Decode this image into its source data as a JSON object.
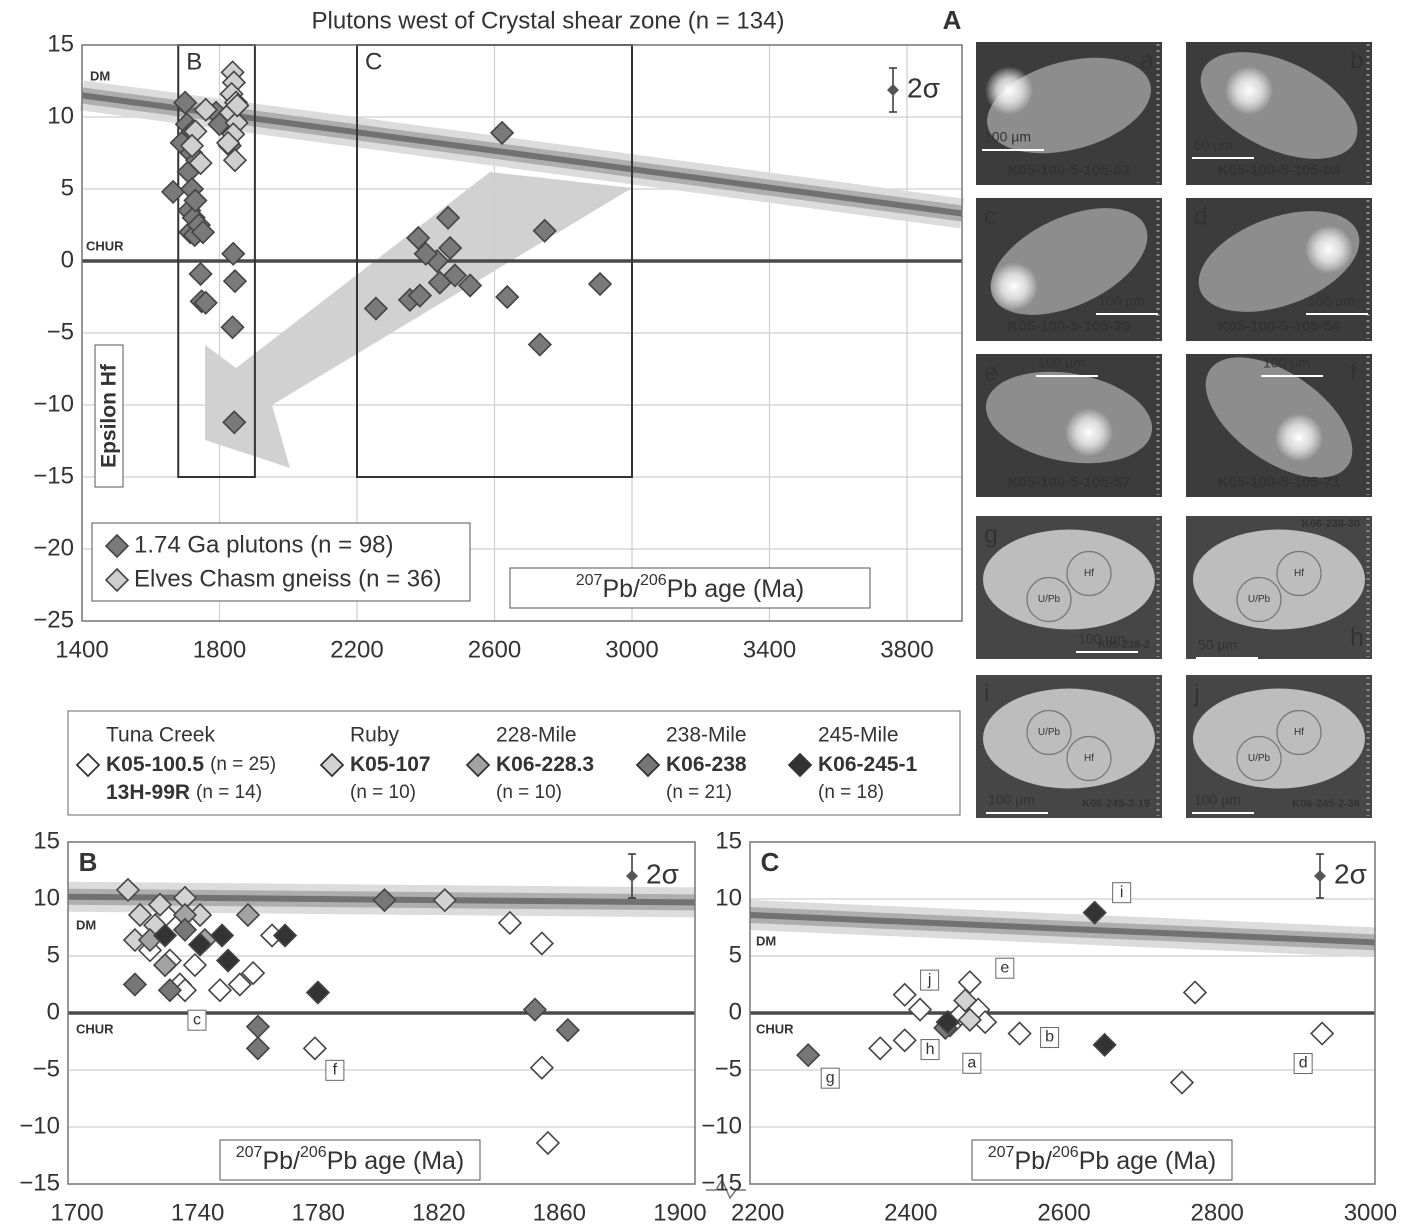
{
  "chart_data": [
    {
      "type": "scatter",
      "title": "Plutons west of Crystal shear zone (n = 134)",
      "panel_label": "A",
      "y_label": "Epsilon Hf",
      "x_label_parts": [
        "207",
        "Pb/",
        "206",
        "Pb age (Ma)"
      ],
      "xlim": [
        1400,
        3960
      ],
      "ylim": [
        -25,
        15
      ],
      "xticks": [
        1400,
        1800,
        2200,
        2600,
        3000,
        3400,
        3800
      ],
      "yticks": [
        15,
        10,
        5,
        0,
        {
          "value": -5,
          "label": "−5"
        },
        {
          "value": -10,
          "label": "−10"
        },
        {
          "value": -15,
          "label": "−15"
        },
        {
          "value": -20,
          "label": "−20"
        },
        {
          "value": -25,
          "label": "−25"
        }
      ],
      "grid": "both",
      "error_label": "2σ",
      "reference_line": {
        "label": "CHUR",
        "y": 0
      },
      "dm_line": {
        "label": "DM",
        "x": [
          1400,
          3960
        ],
        "y": [
          11.5,
          3.3
        ]
      },
      "boxes": [
        {
          "label": "B",
          "xlim": [
            1680,
            1903
          ],
          "ylim": [
            -15,
            15
          ]
        },
        {
          "label": "C",
          "xlim": [
            2200,
            3000
          ],
          "ylim": [
            -15,
            15
          ]
        }
      ],
      "series": [
        {
          "name": "1.74 Ga plutons (n = 98)",
          "color": "#7a7a7a",
          "x": [
            1665,
            1690,
            1700,
            1705,
            1710,
            1712,
            1715,
            1718,
            1720,
            1722,
            1725,
            1728,
            1730,
            1735,
            1740,
            1745,
            1748,
            1752,
            1760,
            1790,
            1800,
            1830,
            1840,
            1845,
            1838,
            1843,
            2255,
            2354,
            2383,
            2378,
            2433,
            2465,
            2471,
            2441,
            2485,
            2529,
            2622,
            2637,
            2732,
            2746,
            2907,
            2400
          ],
          "values": [
            4.8,
            8.2,
            11,
            9.5,
            6.2,
            3.5,
            2,
            7.5,
            5,
            9,
            3,
            1.8,
            4.2,
            7,
            2.5,
            -0.9,
            -2.8,
            2,
            -2.9,
            10.3,
            9.5,
            8,
            0.5,
            -1.4,
            -4.6,
            -11.2,
            -3.3,
            -2.7,
            -2.4,
            1.6,
            0,
            3,
            0.9,
            -1.5,
            -1,
            -1.7,
            8.9,
            -2.5,
            -5.8,
            2.1,
            -1.6,
            0.5
          ]
        },
        {
          "name": "Elves Chasm gneiss (n = 36)",
          "color": "#cfcfcf",
          "x": [
            1838,
            1842,
            1835,
            1848,
            1832,
            1850,
            1840,
            1825,
            1845,
            1730,
            1720,
            1760,
            1745,
            1852
          ],
          "values": [
            13.1,
            12.4,
            11.6,
            11,
            10.3,
            9.6,
            8.8,
            8.2,
            7,
            9,
            8,
            10.5,
            6.8,
            10.8
          ]
        }
      ]
    },
    {
      "type": "scatter",
      "panel_label": "B",
      "x_label_parts": [
        "207",
        "Pb/",
        "206",
        "Pb age (Ma)"
      ],
      "xlim": [
        1697,
        1905
      ],
      "ylim": [
        -15,
        15
      ],
      "xticks": [
        1700,
        1740,
        1780,
        1820,
        1860,
        1900
      ],
      "yticks": [
        15,
        10,
        5,
        0,
        {
          "value": -5,
          "label": "−5"
        },
        {
          "value": -10,
          "label": "−10"
        },
        {
          "value": -15,
          "label": "−15"
        }
      ],
      "grid": "y",
      "error_label": "2σ",
      "reference_line": {
        "label": "CHUR",
        "y": 0
      },
      "dm_line": {
        "label": "DM",
        "x": [
          1697,
          1905
        ],
        "y": [
          10.2,
          9.7
        ]
      },
      "series": [
        {
          "color": "#ffffff",
          "x": [
            1729.5,
            1724.2,
            1730.8,
            1734.1,
            1739.1,
            1747.4,
            1754,
            1758.4,
            1764.7,
            1778.9,
            1843.6,
            1854.2,
            1854.2,
            1856.2,
            1735.8
          ],
          "values": [
            8.6,
            5.5,
            4.6,
            2.5,
            4.2,
            2,
            2.5,
            3.5,
            6.8,
            -3.1,
            7.9,
            6.1,
            -4.8,
            -11.4,
            2
          ]
        },
        {
          "color": "#d2d2d2",
          "x": [
            1716.9,
            1720.9,
            1727.5,
            1735.8,
            1740.8,
            1719.2,
            1822,
            1725.9
          ],
          "values": [
            10.8,
            8.6,
            9.5,
            10.1,
            8.6,
            6.4,
            9.9,
            7.7
          ]
        },
        {
          "color": "#a3a3a3",
          "x": [
            1756.7,
            1735.8,
            1742.4,
            1729.2,
            1724.2
          ],
          "values": [
            8.6,
            8.6,
            6.4,
            4.2,
            6.4
          ]
        },
        {
          "color": "#777777",
          "x": [
            1802,
            1719.2,
            1760,
            1760,
            1851.9,
            1862.8,
            1735.8,
            1730.8
          ],
          "values": [
            9.9,
            2.5,
            -1.2,
            -3.1,
            0.3,
            -1.5,
            7.3,
            2
          ]
        },
        {
          "color": "#333333",
          "x": [
            1748.1,
            1750.1,
            1769,
            1779.9,
            1729.2,
            1740.8
          ],
          "values": [
            6.8,
            4.6,
            6.8,
            1.8,
            6.8,
            6
          ]
        }
      ],
      "annotations": [
        {
          "text": "c",
          "x": 1735.8,
          "y": 2
        },
        {
          "text": "f",
          "x": 1778.9,
          "y": -3.1
        }
      ]
    },
    {
      "type": "scatter",
      "panel_label": "C",
      "x_label_parts": [
        "207",
        "Pb/",
        "206",
        "Pb age (Ma)"
      ],
      "xlim": [
        2190,
        3006
      ],
      "ylim": [
        -15,
        15
      ],
      "xticks": [
        2200,
        2400,
        2600,
        2800,
        3000
      ],
      "yticks": [
        15,
        10,
        5,
        0,
        {
          "value": -5,
          "label": "−5"
        },
        {
          "value": -10,
          "label": "−10"
        },
        {
          "value": -15,
          "label": "−15"
        }
      ],
      "grid": "y",
      "error_label": "2σ",
      "reference_line": {
        "label": "CHUR",
        "y": 0
      },
      "dm_line": {
        "label": "DM",
        "x": [
          2190,
          3006
        ],
        "y": [
          8.6,
          6.2
        ]
      },
      "series": [
        {
          "color": "#ffffff",
          "x": [
            2360,
            2392,
            2392,
            2412,
            2477,
            2464,
            2488,
            2497,
            2542,
            2771,
            2754,
            2937,
            2451
          ],
          "values": [
            -3.1,
            -2.4,
            1.6,
            0.3,
            2.7,
            -0.2,
            0.3,
            -0.8,
            -1.8,
            1.8,
            -6.1,
            -1.8,
            -1.1
          ]
        },
        {
          "color": "#d2d2d2",
          "x": [
            2477,
            2471
          ],
          "values": [
            -0.6,
            1.1
          ]
        },
        {
          "color": "#777777",
          "x": [
            2266,
            2445
          ],
          "values": [
            -3.7,
            -1.3
          ]
        },
        {
          "color": "#333333",
          "x": [
            2640,
            2653,
            2448
          ],
          "values": [
            8.8,
            -2.8,
            -0.8
          ]
        }
      ],
      "annotations": [
        {
          "text": "i",
          "x": 2640,
          "y": 8.8
        },
        {
          "text": "j",
          "x": 2448,
          "y": -0.8
        },
        {
          "text": "e",
          "x": 2477,
          "y": 2.7
        },
        {
          "text": "b",
          "x": 2542,
          "y": -1.8
        },
        {
          "text": "h",
          "x": 2412,
          "y": 0.3
        },
        {
          "text": "a",
          "x": 2464,
          "y": -0.2
        },
        {
          "text": "g",
          "x": 2266,
          "y": -3.7
        },
        {
          "text": "d",
          "x": 2937,
          "y": -1.8
        }
      ]
    }
  ],
  "legend": {
    "entries": [
      {
        "site": "Tuna Creek",
        "color": "#ffffff",
        "samples": [
          {
            "id": "K05-100.5",
            "n": "(n = 25)"
          },
          {
            "id": "13H-99R",
            "n": "(n = 14)"
          }
        ]
      },
      {
        "site": "Ruby",
        "color": "#d2d2d2",
        "samples": [
          {
            "id": "K05-107",
            "n": "(n = 10)"
          }
        ]
      },
      {
        "site": "228-Mile",
        "color": "#a3a3a3",
        "samples": [
          {
            "id": "K06-228.3",
            "n": "(n = 10)"
          }
        ]
      },
      {
        "site": "238-Mile",
        "color": "#777777",
        "samples": [
          {
            "id": "K06-238",
            "n": "(n = 21)"
          }
        ]
      },
      {
        "site": "245-Mile",
        "color": "#333333",
        "samples": [
          {
            "id": "K06-245-1",
            "n": "(n = 18)"
          }
        ]
      }
    ]
  },
  "image_panels": [
    {
      "letter": "a",
      "sample": "K05-100-5-105-03",
      "scale": "100 µm"
    },
    {
      "letter": "b",
      "sample": "K05-100-5-105-04",
      "scale": "50 µm"
    },
    {
      "letter": "c",
      "sample": "K05-100-5-105-39",
      "scale": "100 µm"
    },
    {
      "letter": "d",
      "sample": "K05-100-5-105-54",
      "scale": "100 µm"
    },
    {
      "letter": "e",
      "sample": "K05-100-5-105-57",
      "scale": "100 µm"
    },
    {
      "letter": "f",
      "sample": "K05-100-5-105-71",
      "scale": "100 µm"
    },
    {
      "letter": "g",
      "sample": "K06-238-2",
      "scale": "100 µm",
      "spots": [
        "Hf",
        "U/Pb"
      ]
    },
    {
      "letter": "h",
      "sample": "K06-238-30",
      "scale": "50 µm",
      "spots": [
        "Hf",
        "U/Pb"
      ]
    },
    {
      "letter": "i",
      "sample": "K06-245-2-19",
      "scale": "100 µm",
      "spots": [
        "U/Pb",
        "Hf"
      ]
    },
    {
      "letter": "j",
      "sample": "K06-245-2-36",
      "scale": "100 µm",
      "spots": [
        "Hf",
        "U/Pb"
      ]
    }
  ]
}
